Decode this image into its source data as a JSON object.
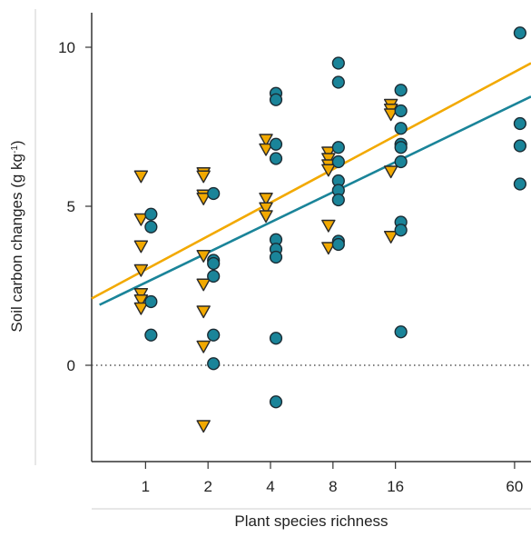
{
  "chart_data": {
    "type": "scatter",
    "title": "",
    "xlabel": "Plant species richness",
    "ylabel": "Soil carbon changes (g kg",
    "ylabel_superscript": "-1",
    "ylabel_suffix": ")",
    "x_scale": "log2",
    "x_ticks": [
      1,
      2,
      4,
      8,
      16,
      60
    ],
    "x_tick_labels": [
      "1",
      "2",
      "4",
      "8",
      "16",
      "60"
    ],
    "y_ticks": [
      0,
      5,
      10
    ],
    "y_tick_labels": [
      "0",
      "5",
      "10"
    ],
    "ylim": [
      -3,
      11
    ],
    "xlim": [
      0.55,
      72
    ],
    "grid": false,
    "reference_line": {
      "y": 0,
      "style": "dotted",
      "color": "#555555"
    },
    "series": [
      {
        "marker": "triangle-down",
        "color": "#F2A900",
        "points": [
          [
            1,
            5.95
          ],
          [
            1,
            4.6
          ],
          [
            1,
            3.75
          ],
          [
            1,
            3.0
          ],
          [
            1,
            2.25
          ],
          [
            1,
            2.05
          ],
          [
            1,
            1.8
          ],
          [
            2,
            6.05
          ],
          [
            2,
            5.95
          ],
          [
            2,
            5.35
          ],
          [
            2,
            5.25
          ],
          [
            2,
            3.45
          ],
          [
            2,
            2.55
          ],
          [
            2,
            1.7
          ],
          [
            2,
            0.6
          ],
          [
            2,
            -1.9
          ],
          [
            4,
            7.1
          ],
          [
            4,
            6.8
          ],
          [
            4,
            5.25
          ],
          [
            4,
            4.95
          ],
          [
            4,
            4.7
          ],
          [
            8,
            6.7
          ],
          [
            8,
            6.5
          ],
          [
            8,
            6.3
          ],
          [
            8,
            6.15
          ],
          [
            8,
            4.4
          ],
          [
            8,
            3.7
          ],
          [
            16,
            8.2
          ],
          [
            16,
            8.05
          ],
          [
            16,
            7.9
          ],
          [
            16,
            6.1
          ],
          [
            16,
            4.05
          ]
        ]
      },
      {
        "marker": "circle",
        "color": "#1A8499",
        "points": [
          [
            1,
            4.75
          ],
          [
            1,
            4.35
          ],
          [
            1,
            2.0
          ],
          [
            1,
            0.95
          ],
          [
            2,
            5.4
          ],
          [
            2,
            3.3
          ],
          [
            2,
            3.2
          ],
          [
            2,
            2.8
          ],
          [
            2,
            0.95
          ],
          [
            2,
            0.05
          ],
          [
            4,
            8.55
          ],
          [
            4,
            8.35
          ],
          [
            4,
            6.95
          ],
          [
            4,
            6.5
          ],
          [
            4,
            3.95
          ],
          [
            4,
            3.65
          ],
          [
            4,
            3.4
          ],
          [
            4,
            0.85
          ],
          [
            4,
            -1.15
          ],
          [
            8,
            9.5
          ],
          [
            8,
            8.9
          ],
          [
            8,
            6.85
          ],
          [
            8,
            6.4
          ],
          [
            8,
            5.8
          ],
          [
            8,
            5.5
          ],
          [
            8,
            5.2
          ],
          [
            8,
            3.9
          ],
          [
            8,
            3.8
          ],
          [
            16,
            8.65
          ],
          [
            16,
            8.0
          ],
          [
            16,
            7.45
          ],
          [
            16,
            6.95
          ],
          [
            16,
            6.85
          ],
          [
            16,
            6.4
          ],
          [
            16,
            4.5
          ],
          [
            16,
            4.25
          ],
          [
            16,
            1.05
          ],
          [
            60,
            10.45
          ],
          [
            60,
            7.6
          ],
          [
            60,
            6.9
          ],
          [
            60,
            5.7
          ]
        ]
      }
    ],
    "trend_lines": [
      {
        "color": "#F2A900",
        "x": [
          0.55,
          72
        ],
        "y": [
          2.1,
          9.5
        ]
      },
      {
        "color": "#1A8499",
        "x": [
          0.6,
          72
        ],
        "y": [
          1.9,
          8.45
        ]
      }
    ]
  }
}
